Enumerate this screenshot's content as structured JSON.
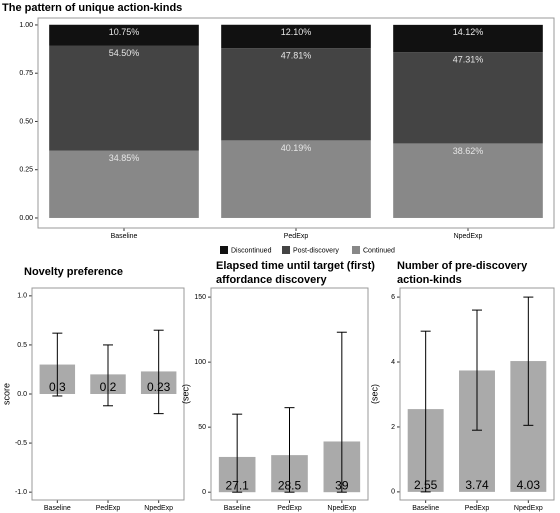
{
  "chart_data": [
    {
      "type": "stacked_bar",
      "title": "The pattern of unique action-kinds",
      "categories": [
        "Baseline",
        "PedExp",
        "NpedExp"
      ],
      "series": [
        {
          "name": "Discontinued",
          "color": "#111111",
          "values": [
            0.1075,
            0.121,
            0.1412
          ],
          "value_labels": [
            "10.75%",
            "12.10%",
            "14.12%"
          ]
        },
        {
          "name": "Post-discovery",
          "color": "#444444",
          "values": [
            0.545,
            0.4781,
            0.4731
          ],
          "value_labels": [
            "54.50%",
            "47.81%",
            "47.31%"
          ]
        },
        {
          "name": "Continued",
          "color": "#888888",
          "values": [
            0.3485,
            0.4019,
            0.3862
          ],
          "value_labels": [
            "34.85%",
            "40.19%",
            "38.62%"
          ]
        }
      ],
      "ylim": [
        -0.052,
        1.036
      ],
      "yticks": [
        {
          "value": 0,
          "label": "0.00"
        },
        0.25,
        {
          "value": 0.5,
          "label": "0.50"
        },
        0.75,
        {
          "value": 1,
          "label": "1.00"
        }
      ],
      "legend": "bottom",
      "grid": false
    },
    {
      "type": "bar_error",
      "title": "Novelty preference",
      "ylabel": "score",
      "color": "#aaaaaa",
      "categories": [
        "Baseline",
        "PedExp",
        "NpedExp"
      ],
      "values": [
        0.3,
        0.2,
        0.23
      ],
      "lower": [
        -0.02,
        -0.12,
        -0.2
      ],
      "upper": [
        0.62,
        0.5,
        0.65
      ],
      "ylim": [
        -1.08,
        1.08
      ],
      "yticks": [
        {
          "value": -1,
          "label": "-1.0"
        },
        -0.5,
        {
          "value": 0,
          "label": "0.0"
        },
        0.5,
        {
          "value": 1,
          "label": "1.0"
        }
      ],
      "grid": false
    },
    {
      "type": "bar_error",
      "title": [
        "Elapsed time until target (first)",
        "affordance discovery"
      ],
      "ylabel": "(sec)",
      "color": "#aaaaaa",
      "categories": [
        "Baseline",
        "PedExp",
        "NpedExp"
      ],
      "values": [
        27.1,
        28.5,
        39
      ],
      "lower": [
        0,
        0,
        0
      ],
      "upper": [
        60,
        65,
        123
      ],
      "ylim": [
        -6,
        157
      ],
      "yticks": [
        0,
        50,
        100,
        150
      ],
      "grid": false
    },
    {
      "type": "bar_error",
      "title": [
        "Number of pre-discovery",
        "action-kinds"
      ],
      "ylabel": "(sec)",
      "color": "#aaaaaa",
      "categories": [
        "Baseline",
        "PedExp",
        "NpedExp"
      ],
      "values": [
        2.55,
        3.74,
        4.03
      ],
      "lower": [
        0,
        1.9,
        2.05
      ],
      "upper": [
        4.95,
        5.6,
        6.0
      ],
      "ylim": [
        -0.25,
        6.28
      ],
      "yticks": [
        0,
        2,
        4,
        6
      ],
      "grid": false
    }
  ]
}
